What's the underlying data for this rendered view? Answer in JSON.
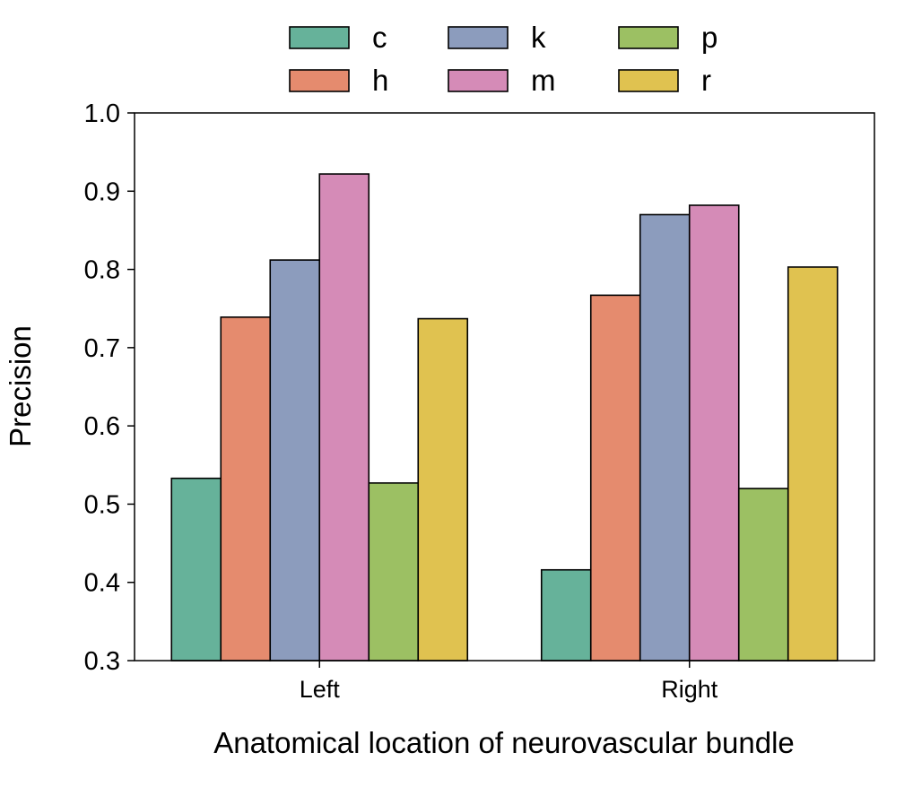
{
  "chart_data": {
    "type": "bar",
    "categories": [
      "Left",
      "Right"
    ],
    "series": [
      {
        "name": "c",
        "color": "#66b29a",
        "values": [
          0.533,
          0.416
        ]
      },
      {
        "name": "h",
        "color": "#e58b6e",
        "values": [
          0.739,
          0.767
        ]
      },
      {
        "name": "k",
        "color": "#8c9cbd",
        "values": [
          0.812,
          0.87
        ]
      },
      {
        "name": "m",
        "color": "#d58bb7",
        "values": [
          0.922,
          0.882
        ]
      },
      {
        "name": "p",
        "color": "#9cc063",
        "values": [
          0.527,
          0.52
        ]
      },
      {
        "name": "r",
        "color": "#e0c250",
        "values": [
          0.737,
          0.803
        ]
      }
    ],
    "xlabel": "Anatomical location of neurovascular bundle",
    "ylabel": "Precision",
    "ylim": [
      0.3,
      1.0
    ],
    "yticks": [
      "0.3",
      "0.4",
      "0.5",
      "0.6",
      "0.7",
      "0.8",
      "0.9",
      "1.0"
    ],
    "grid": false,
    "legend": {
      "position": "top-center",
      "columns": 3
    }
  }
}
